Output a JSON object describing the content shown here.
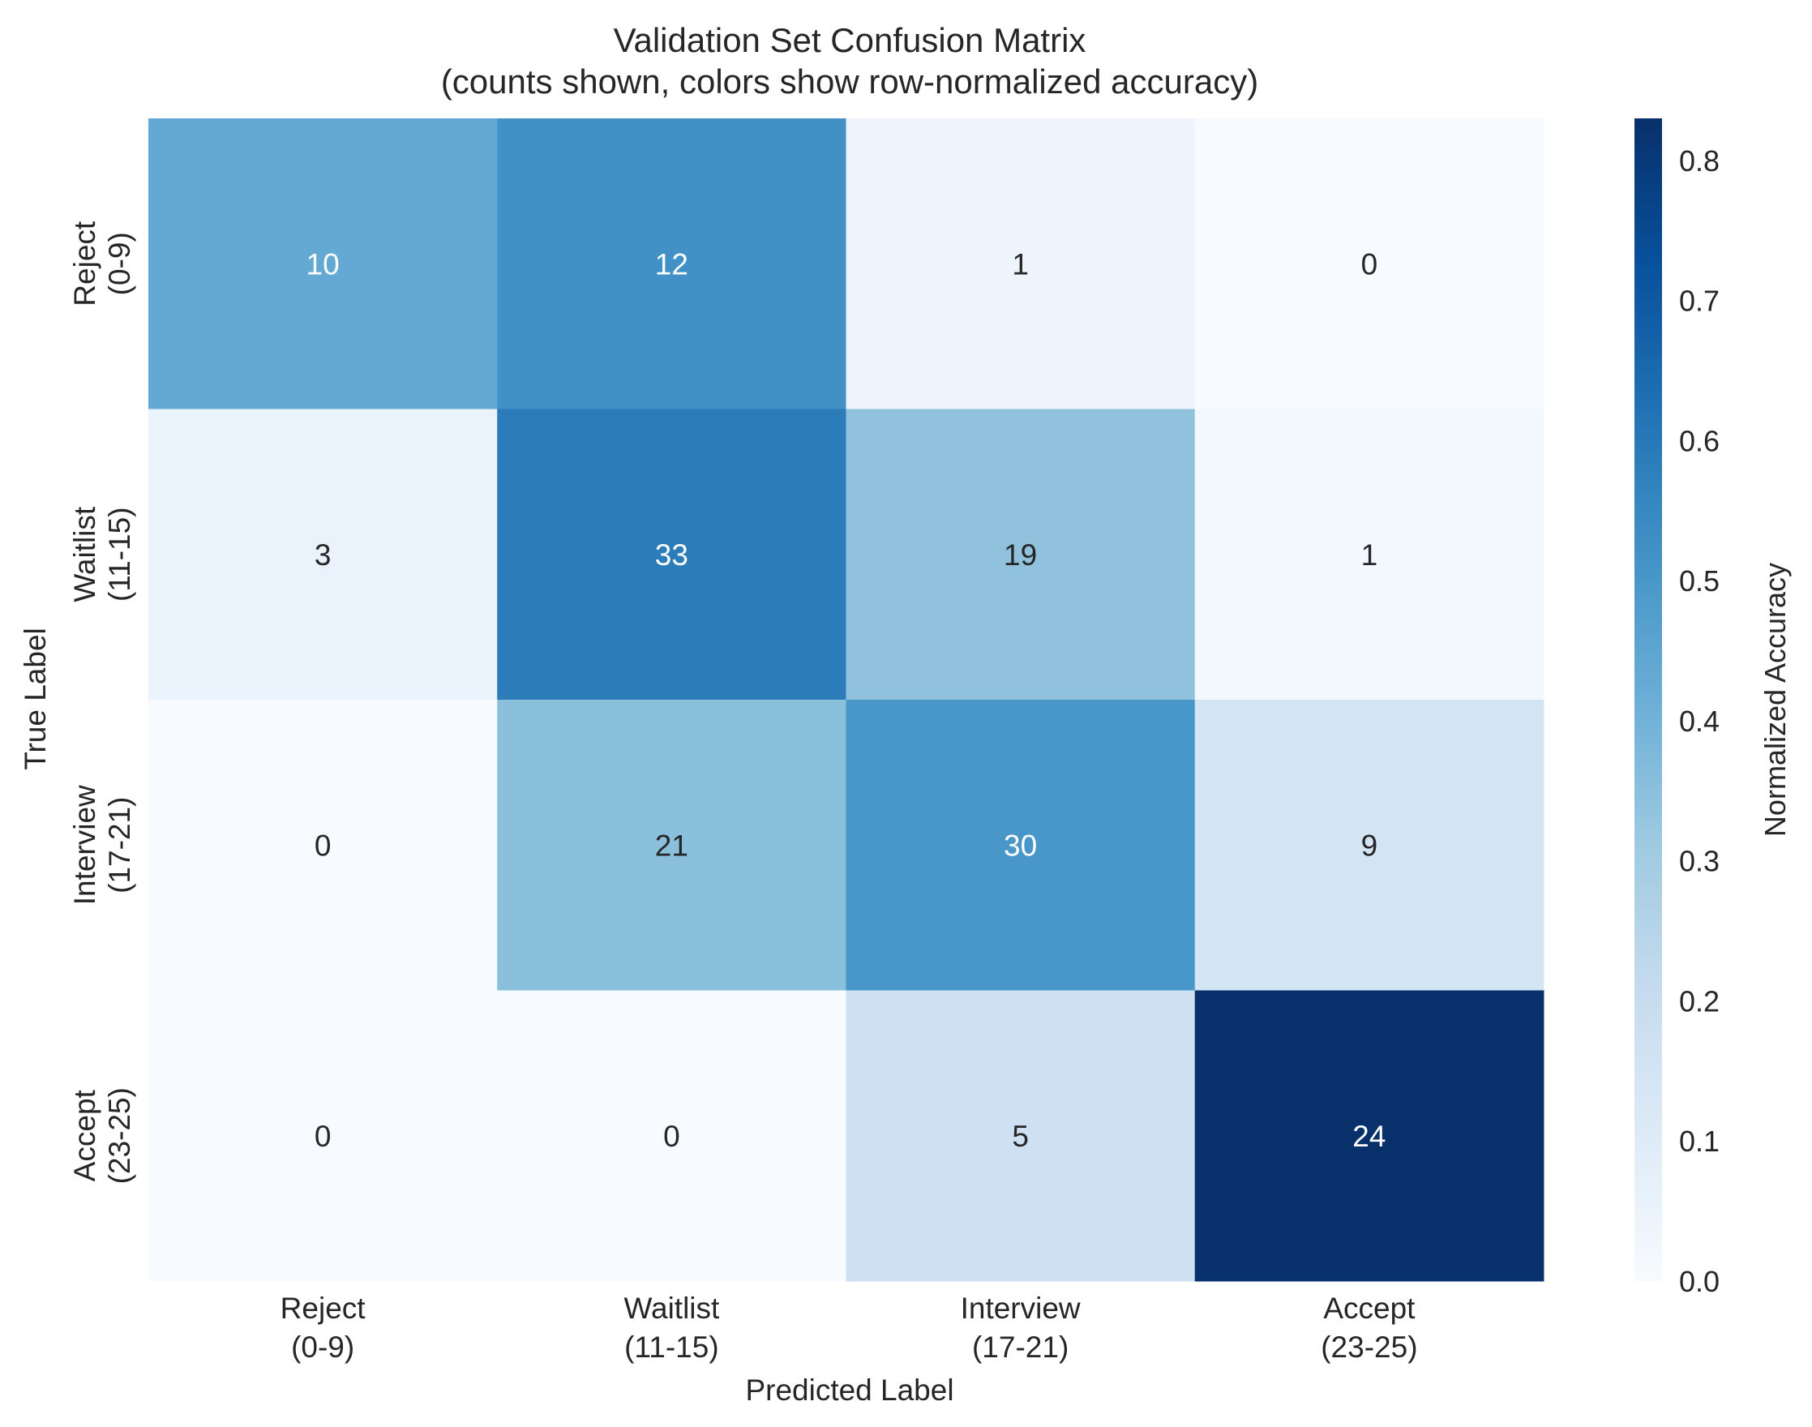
{
  "chart_data": {
    "type": "heatmap",
    "title_line1": "Validation Set Confusion Matrix",
    "title_line2": "(counts shown, colors show row-normalized accuracy)",
    "xlabel": "Predicted Label",
    "ylabel": "True Label",
    "colorbar_label": "Normalized Accuracy",
    "colormap": "Blues",
    "color_range": [
      0,
      0.83
    ],
    "colorbar_ticks": [
      "0.0",
      "0.1",
      "0.2",
      "0.3",
      "0.4",
      "0.5",
      "0.6",
      "0.7",
      "0.8"
    ],
    "x_categories": [
      {
        "name": "Reject",
        "range": "(0-9)"
      },
      {
        "name": "Waitlist",
        "range": "(11-15)"
      },
      {
        "name": "Interview",
        "range": "(17-21)"
      },
      {
        "name": "Accept",
        "range": "(23-25)"
      }
    ],
    "y_categories": [
      {
        "name": "Reject",
        "range": "(0-9)"
      },
      {
        "name": "Waitlist",
        "range": "(11-15)"
      },
      {
        "name": "Interview",
        "range": "(17-21)"
      },
      {
        "name": "Accept",
        "range": "(23-25)"
      }
    ],
    "counts": [
      [
        10,
        12,
        1,
        0
      ],
      [
        3,
        33,
        19,
        1
      ],
      [
        0,
        21,
        30,
        9
      ],
      [
        0,
        0,
        5,
        24
      ]
    ],
    "grid": false
  }
}
